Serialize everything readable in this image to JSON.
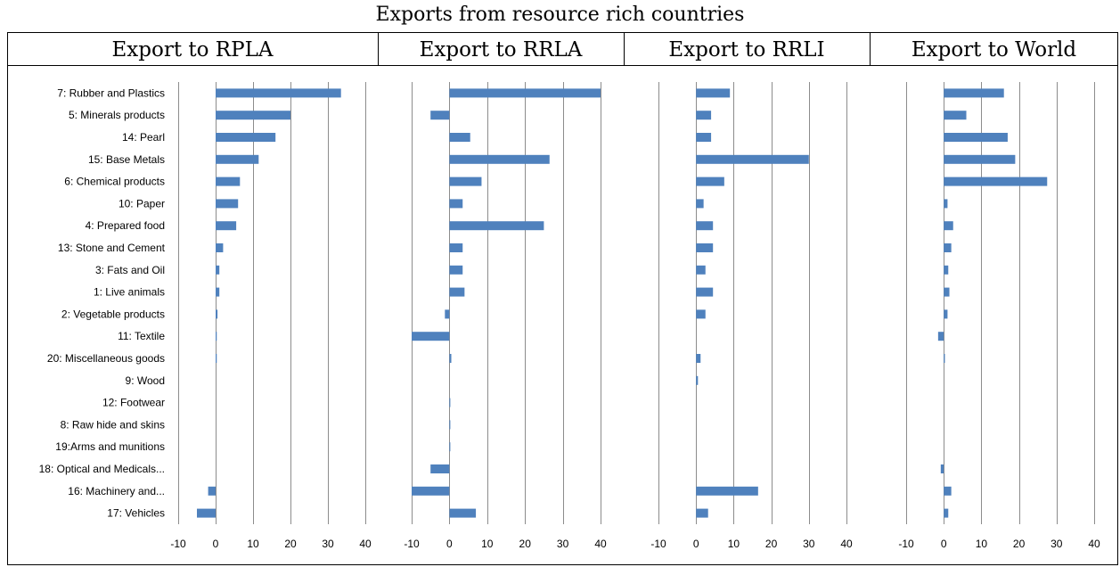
{
  "title": "Exports from resource rich countries",
  "bar_color": "#4f81bd",
  "chart_data": {
    "type": "bar",
    "orientation": "horizontal",
    "title": "Exports from resource rich countries",
    "categories": [
      "7: Rubber and Plastics",
      "5: Minerals products",
      "14: Pearl",
      "15: Base Metals",
      "6: Chemical products",
      "10: Paper",
      "4: Prepared food",
      "13: Stone and Cement",
      "3: Fats and Oil",
      "1: Live animals",
      "2: Vegetable products",
      "11: Textile",
      "20: Miscellaneous goods",
      "9: Wood",
      "12: Footwear",
      "8: Raw hide and skins",
      "19:Arms and munitions",
      "18: Optical and Medicals...",
      "16: Machinery and...",
      "17: Vehicles"
    ],
    "xlim": [
      -10,
      40
    ],
    "xticks": [
      -10,
      0,
      10,
      20,
      30,
      40
    ],
    "grid": "vertical",
    "panels": [
      {
        "name": "Export to RPLA",
        "values": [
          33.5,
          20,
          16,
          11.5,
          6.5,
          6,
          5.5,
          2,
          1,
          1,
          0.5,
          0.3,
          0.3,
          0,
          0,
          0,
          0,
          0,
          -2,
          -5
        ]
      },
      {
        "name": "Export to RRLA",
        "values": [
          40,
          -5,
          5.5,
          26.5,
          8.5,
          3.5,
          25,
          3.5,
          3.5,
          4,
          -1.2,
          -10,
          0.5,
          0,
          0.2,
          0.2,
          0.2,
          -5,
          -10,
          7
        ]
      },
      {
        "name": "Export to RRLI",
        "values": [
          9,
          4,
          4,
          30,
          7.5,
          2,
          4.5,
          4.5,
          2.5,
          4.5,
          2.5,
          0,
          1.2,
          0.5,
          0,
          0,
          0,
          0,
          16.5,
          3.2
        ]
      },
      {
        "name": "Export to World",
        "values": [
          16,
          6,
          17,
          19,
          27.5,
          1,
          2.5,
          2,
          1.2,
          1.5,
          1,
          -1.5,
          0.3,
          0,
          0,
          0,
          0,
          -0.8,
          2,
          1.2
        ]
      }
    ]
  }
}
